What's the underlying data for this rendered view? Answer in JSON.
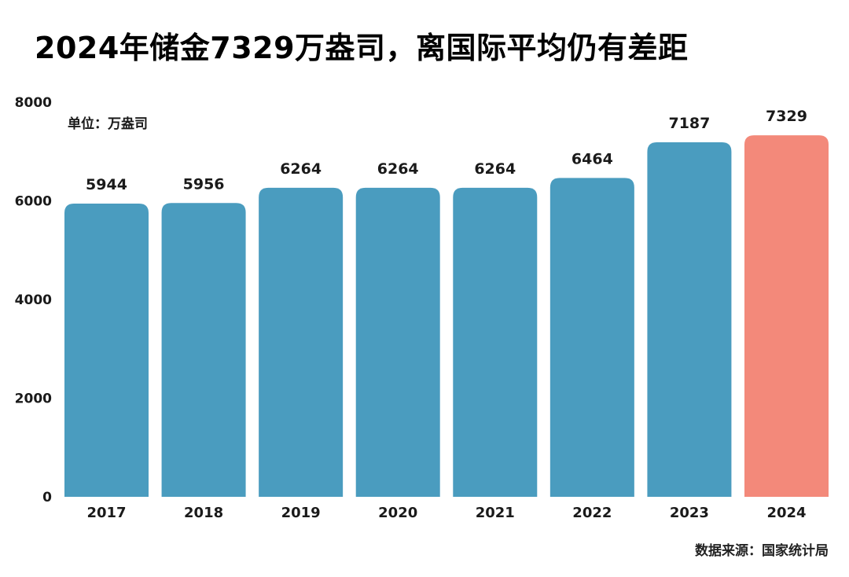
{
  "chart_data": {
    "type": "bar",
    "title": "2024年储金7329万盎司，离国际平均仍有差距",
    "unit_label": "单位：万盎司",
    "categories": [
      "2017",
      "2018",
      "2019",
      "2020",
      "2021",
      "2022",
      "2023",
      "2024"
    ],
    "values": [
      5944,
      5956,
      6264,
      6264,
      6264,
      6464,
      7187,
      7329
    ],
    "ylim": [
      0,
      8000
    ],
    "yticks": [
      0,
      2000,
      4000,
      6000,
      8000
    ],
    "grid": false,
    "legend": "none",
    "colors": {
      "bar": "#4a9cbf",
      "highlight": "#f3897a"
    },
    "highlight_category": "2024",
    "source": "数据来源：国家统计局"
  }
}
